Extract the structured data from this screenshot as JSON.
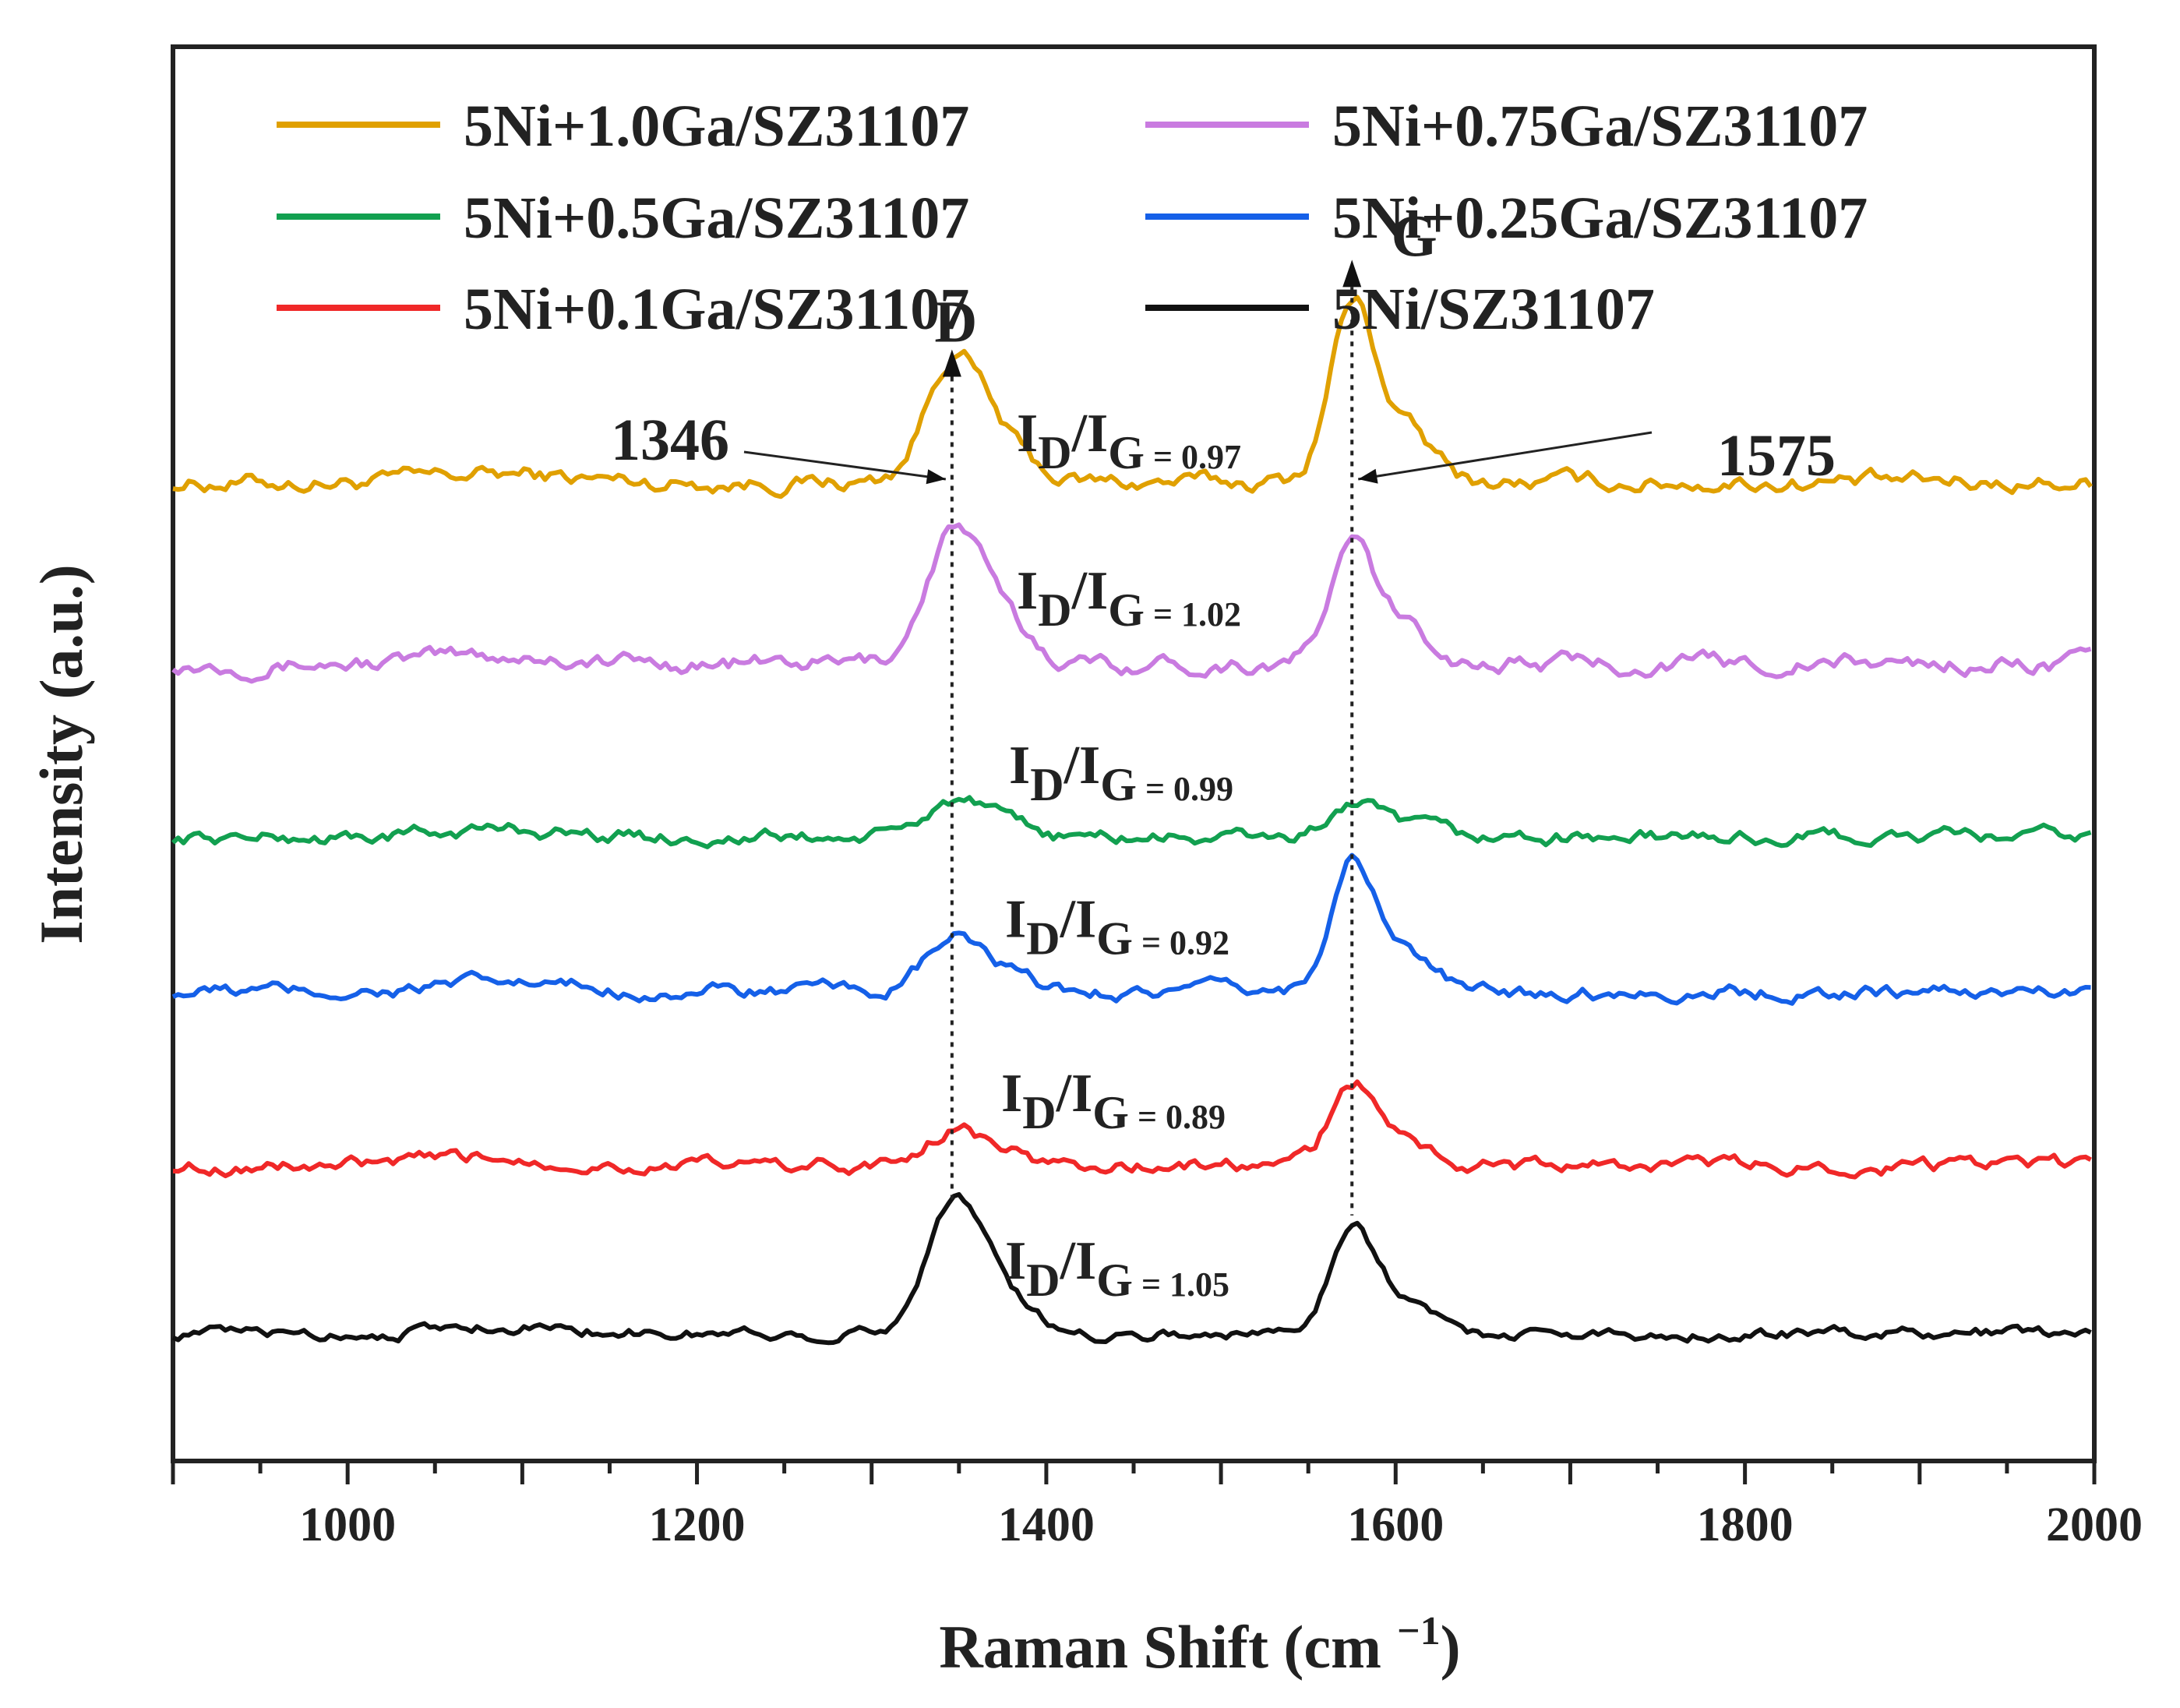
{
  "chart_data": {
    "type": "line",
    "xlabel": "Raman Shift (cm",
    "xlabel_sup": "−1",
    "xlabel_close": ")",
    "ylabel": "Intensity (a.u.)",
    "xlim": [
      900,
      2000
    ],
    "xticks": [
      1000,
      1200,
      1400,
      1600,
      1800,
      2000
    ],
    "peaks": [
      {
        "name": "D",
        "position": 1346,
        "label": "1346"
      },
      {
        "name": "G",
        "position": 1575,
        "label": "1575"
      }
    ],
    "series": [
      {
        "name": "5Ni+1.0Ga/SZ31107",
        "color": "#E0A000",
        "offset": 6.75,
        "d_height": 0.85,
        "g_height": 1.3,
        "baseline_noise": 0.06,
        "ratio_label": "0.97"
      },
      {
        "name": "5Ni+0.75Ga/SZ31107",
        "color": "#C97BE0",
        "offset": 5.4,
        "d_height": 0.9,
        "g_height": 0.85,
        "baseline_noise": 0.06,
        "ratio_label": "1.02"
      },
      {
        "name": "5Ni+0.5Ga/SZ31107",
        "color": "#12A050",
        "offset": 4.1,
        "d_height": 0.25,
        "g_height": 0.25,
        "baseline_noise": 0.05,
        "ratio_label": "0.99"
      },
      {
        "name": "5Ni+0.25Ga/SZ31107",
        "color": "#1560E8",
        "offset": 2.95,
        "d_height": 0.35,
        "g_height": 0.95,
        "baseline_noise": 0.05,
        "ratio_label": "0.92"
      },
      {
        "name": "5Ni+0.1Ga/SZ31107",
        "color": "#F02828",
        "offset": 1.65,
        "d_height": 0.25,
        "g_height": 0.6,
        "baseline_noise": 0.05,
        "ratio_label": "0.89"
      },
      {
        "name": "5Ni/SZ31107",
        "color": "#111111",
        "offset": 0.4,
        "d_height": 0.9,
        "g_height": 0.8,
        "baseline_noise": 0.04,
        "ratio_label": "1.05"
      }
    ],
    "ratio_text": {
      "I": "I",
      "D": "D",
      "slash": "/",
      "G": "G",
      "eq": " = "
    }
  }
}
